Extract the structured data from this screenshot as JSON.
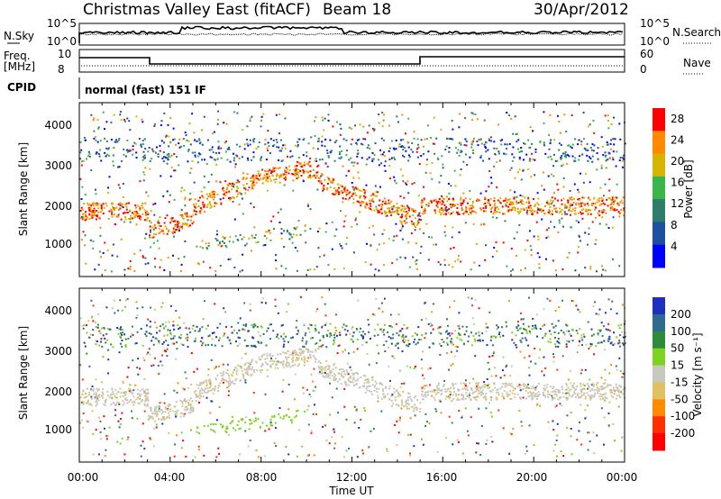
{
  "header": {
    "station": "Christmas Valley East (fitACF)",
    "beam": "Beam 18",
    "date": "30/Apr/2012"
  },
  "strips": {
    "nsky_label": "N.Sky",
    "nsearch_label": "N.Search",
    "nsky_ticks": [
      "10^5",
      "10^0"
    ],
    "nsearch_ticks": [
      "10^5",
      "10^0"
    ],
    "freq_label_1": "Freq.",
    "freq_label_2": "[MHz]",
    "freq_ticks": [
      "10",
      "8"
    ],
    "nave_label": "Nave",
    "nave_ticks": [
      "60",
      "0"
    ],
    "cpid_label": "CPID",
    "cpid_text": "normal (fast) 151 IF"
  },
  "chart_data": [
    {
      "type": "heatmap",
      "name_key": "power",
      "ylabel": "Slant Range [km]",
      "yticks": [
        1000,
        2000,
        3000,
        4000
      ],
      "ylim": [
        0,
        4500
      ],
      "colorbar_label": "Power [dB]",
      "colorbar_ticks": [
        "4",
        "8",
        "12",
        "16",
        "20",
        "24",
        "28"
      ],
      "colors": [
        "#0000ff",
        "#1f4fa0",
        "#2e7d6b",
        "#39b54a",
        "#d7b400",
        "#ff8a00",
        "#ff0000"
      ]
    },
    {
      "type": "heatmap",
      "name_key": "velocity",
      "ylabel": "Slant Range [km]",
      "yticks": [
        1000,
        2000,
        3000,
        4000
      ],
      "ylim": [
        0,
        4500
      ],
      "colorbar_label": "Velocity [m s⁻¹]",
      "colorbar_ticks": [
        "200",
        "100",
        "50",
        "15",
        "-15",
        "-50",
        "-100",
        "-200"
      ],
      "colors": [
        "#1f2fbf",
        "#2e6b8f",
        "#2e8b3c",
        "#7ed321",
        "#c8c8c0",
        "#e0c060",
        "#ff8c00",
        "#ff3000",
        "#ff0000"
      ]
    }
  ],
  "x_axis": {
    "label": "Time UT",
    "ticks": [
      "00:00",
      "04:00",
      "08:00",
      "12:00",
      "16:00",
      "20:00",
      "00:00"
    ]
  }
}
